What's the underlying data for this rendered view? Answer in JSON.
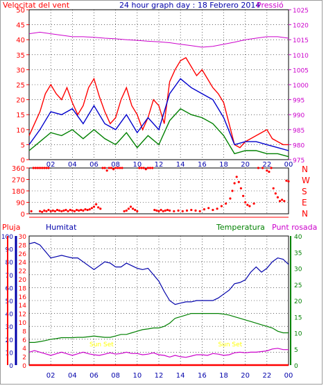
{
  "chart_data": [
    {
      "type": "line",
      "title": "24 hour graph day : 18 Febrero 2014",
      "left_axis_label": "Velocitat del vent",
      "right_axis_label": "Pressió",
      "xticks": [
        "02",
        "04",
        "06",
        "08",
        "10",
        "12",
        "14",
        "16",
        "18",
        "20",
        "22",
        "00"
      ],
      "yleft_ticks": [
        0,
        5,
        10,
        15,
        20,
        25,
        30,
        35,
        40,
        45,
        50
      ],
      "yright_ticks": [
        975,
        980,
        985,
        990,
        995,
        1000,
        1005,
        1010,
        1015,
        1020,
        1025
      ],
      "ylim_left": [
        0,
        50
      ],
      "ylim_right": [
        975,
        1025
      ],
      "colors": {
        "gust": "#ff0000",
        "average": "#0000cc",
        "wind": "#008000",
        "pressure": "#cc00cc"
      },
      "series": [
        {
          "key": "gust",
          "x": [
            0,
            0.5,
            1,
            1.5,
            2,
            2.5,
            3,
            3.5,
            4,
            4.5,
            5,
            5.5,
            6,
            6.5,
            7,
            7.5,
            8,
            8.5,
            9,
            9.5,
            10,
            10.5,
            11,
            11.5,
            12,
            12.5,
            13,
            13.5,
            14,
            14.5,
            15,
            15.5,
            16,
            16.5,
            17,
            17.5,
            18,
            18.5,
            19,
            19.5,
            20,
            20.5,
            21,
            21.5,
            22,
            22.5,
            23,
            23.5,
            24
          ],
          "y": [
            8,
            12,
            16,
            22,
            25,
            22,
            20,
            24,
            19,
            15,
            18,
            24,
            27,
            21,
            16,
            12,
            14,
            20,
            24,
            18,
            15,
            10,
            14,
            20,
            18,
            12,
            26,
            30,
            33,
            34,
            31,
            28,
            30,
            27,
            24,
            22,
            19,
            12,
            5,
            4,
            6,
            7,
            8,
            9,
            10,
            7,
            6,
            5,
            5
          ]
        },
        {
          "key": "average",
          "x": [
            0,
            1,
            2,
            3,
            4,
            5,
            6,
            7,
            8,
            9,
            10,
            11,
            12,
            13,
            14,
            15,
            16,
            17,
            18,
            19,
            20,
            21,
            22,
            23,
            24
          ],
          "y": [
            5,
            10,
            16,
            15,
            17,
            12,
            18,
            12,
            10,
            15,
            9,
            14,
            10,
            22,
            27,
            24,
            22,
            20,
            14,
            5,
            6,
            6,
            5,
            4,
            3
          ]
        },
        {
          "key": "wind",
          "x": [
            0,
            1,
            2,
            3,
            4,
            5,
            6,
            7,
            8,
            9,
            10,
            11,
            12,
            13,
            14,
            15,
            16,
            17,
            18,
            19,
            20,
            21,
            22,
            23,
            24
          ],
          "y": [
            3,
            6,
            9,
            8,
            10,
            7,
            10,
            7,
            5,
            9,
            4,
            8,
            5,
            13,
            17,
            15,
            14,
            12,
            8,
            2,
            3,
            3,
            2,
            2,
            1
          ]
        },
        {
          "key": "pressure",
          "x": [
            0,
            1,
            2,
            3,
            4,
            5,
            6,
            7,
            8,
            9,
            10,
            11,
            12,
            13,
            14,
            15,
            16,
            17,
            18,
            19,
            20,
            21,
            22,
            23,
            24
          ],
          "y": [
            1017,
            1017.5,
            1017,
            1016.5,
            1016,
            1016,
            1015.8,
            1015.5,
            1015.3,
            1015,
            1014.8,
            1014.5,
            1014.3,
            1014,
            1013.5,
            1013,
            1012.5,
            1012.8,
            1013.5,
            1014.2,
            1015,
            1015.5,
            1016,
            1016,
            1015.5
          ]
        }
      ]
    },
    {
      "type": "scatter",
      "right_labels": [
        "N",
        "W",
        "S",
        "E",
        "N"
      ],
      "yticks": [
        0,
        90,
        180,
        270,
        360
      ],
      "ylim": [
        0,
        360
      ],
      "xticks": [
        "02",
        "04",
        "06",
        "08",
        "10",
        "12",
        "14",
        "16",
        "18",
        "20",
        "22",
        "00"
      ],
      "color": "#ff0000",
      "series": [
        {
          "key": "direction",
          "points": [
            [
              0.2,
              20
            ],
            [
              0.4,
              360
            ],
            [
              0.6,
              360
            ],
            [
              0.8,
              360
            ],
            [
              1.0,
              360
            ],
            [
              1.2,
              360
            ],
            [
              1.4,
              360
            ],
            [
              1.6,
              360
            ],
            [
              1.8,
              360
            ],
            [
              1.0,
              20
            ],
            [
              1.2,
              15
            ],
            [
              1.4,
              25
            ],
            [
              1.6,
              20
            ],
            [
              1.8,
              30
            ],
            [
              2.0,
              20
            ],
            [
              2.2,
              25
            ],
            [
              2.4,
              20
            ],
            [
              2.6,
              30
            ],
            [
              2.8,
              25
            ],
            [
              3.0,
              20
            ],
            [
              3.2,
              25
            ],
            [
              3.4,
              30
            ],
            [
              3.6,
              20
            ],
            [
              3.8,
              30
            ],
            [
              4.0,
              25
            ],
            [
              4.2,
              20
            ],
            [
              4.4,
              30
            ],
            [
              4.6,
              25
            ],
            [
              4.8,
              30
            ],
            [
              5.0,
              25
            ],
            [
              5.2,
              35
            ],
            [
              5.4,
              30
            ],
            [
              5.6,
              35
            ],
            [
              5.8,
              45
            ],
            [
              6.0,
              55
            ],
            [
              6.2,
              75
            ],
            [
              6.4,
              50
            ],
            [
              6.6,
              40
            ],
            [
              6.8,
              360
            ],
            [
              7.0,
              360
            ],
            [
              7.2,
              340
            ],
            [
              7.4,
              360
            ],
            [
              7.6,
              360
            ],
            [
              7.8,
              350
            ],
            [
              8.0,
              360
            ],
            [
              8.2,
              360
            ],
            [
              8.4,
              360
            ],
            [
              8.6,
              360
            ],
            [
              8.8,
              20
            ],
            [
              9.0,
              25
            ],
            [
              9.2,
              40
            ],
            [
              9.4,
              55
            ],
            [
              9.6,
              40
            ],
            [
              9.8,
              30
            ],
            [
              10.0,
              20
            ],
            [
              10.2,
              360
            ],
            [
              10.4,
              360
            ],
            [
              10.6,
              360
            ],
            [
              10.8,
              350
            ],
            [
              11.0,
              360
            ],
            [
              11.2,
              360
            ],
            [
              11.4,
              360
            ],
            [
              11.6,
              30
            ],
            [
              11.8,
              25
            ],
            [
              12.0,
              20
            ],
            [
              12.2,
              30
            ],
            [
              12.4,
              20
            ],
            [
              12.6,
              25
            ],
            [
              12.8,
              30
            ],
            [
              13.0,
              25
            ],
            [
              13.4,
              20
            ],
            [
              13.8,
              25
            ],
            [
              14.2,
              20
            ],
            [
              14.6,
              25
            ],
            [
              15.0,
              30
            ],
            [
              15.4,
              25
            ],
            [
              15.8,
              20
            ],
            [
              16.2,
              35
            ],
            [
              16.6,
              45
            ],
            [
              17.0,
              30
            ],
            [
              17.4,
              40
            ],
            [
              17.8,
              60
            ],
            [
              18.2,
              80
            ],
            [
              18.6,
              120
            ],
            [
              18.8,
              180
            ],
            [
              19.0,
              240
            ],
            [
              19.2,
              290
            ],
            [
              19.4,
              250
            ],
            [
              19.6,
              200
            ],
            [
              19.8,
              140
            ],
            [
              20.0,
              90
            ],
            [
              20.2,
              70
            ],
            [
              20.4,
              60
            ],
            [
              20.8,
              80
            ],
            [
              21.2,
              360
            ],
            [
              21.6,
              360
            ],
            [
              22.0,
              340
            ],
            [
              22.2,
              330
            ],
            [
              22.4,
              360
            ],
            [
              22.6,
              200
            ],
            [
              22.8,
              160
            ],
            [
              23.0,
              130
            ],
            [
              23.2,
              100
            ],
            [
              23.4,
              110
            ],
            [
              23.6,
              100
            ],
            [
              23.8,
              260
            ],
            [
              24.0,
              255
            ]
          ]
        }
      ]
    },
    {
      "type": "line",
      "left_labels": {
        "rain": "Pluja",
        "humidity": "Humitat"
      },
      "right_labels": {
        "temperature": "Temperatura",
        "dewpoint": "Punt rosada"
      },
      "yrain_ticks": [
        0,
        2,
        4,
        6,
        8,
        10,
        12,
        14,
        16,
        18,
        20,
        22,
        24,
        26,
        28,
        30
      ],
      "yhum_ticks": [
        0,
        10,
        20,
        30,
        40,
        50,
        60,
        70,
        80,
        90,
        100
      ],
      "ytemp_ticks": [
        0,
        5,
        10,
        15,
        20,
        25,
        30,
        35,
        40
      ],
      "ylim_humidity": [
        0,
        100
      ],
      "ylim_temperature": [
        0,
        40
      ],
      "xticks": [
        "02",
        "04",
        "06",
        "08",
        "10",
        "12",
        "14",
        "16",
        "18",
        "20",
        "22",
        "00"
      ],
      "annotations": [
        {
          "label": "Sun Set",
          "x": 6.7
        },
        {
          "label": "Sun Set",
          "x": 18.6
        }
      ],
      "colors": {
        "humidity": "#0000aa",
        "temperature": "#008000",
        "dewpoint": "#cc00cc",
        "rain": "#ff0000"
      },
      "series": [
        {
          "key": "humidity",
          "x": [
            0,
            0.5,
            1,
            1.5,
            2,
            2.5,
            3,
            3.5,
            4,
            4.5,
            5,
            5.5,
            6,
            6.5,
            7,
            7.5,
            8,
            8.5,
            9,
            9.5,
            10,
            10.5,
            11,
            11.5,
            12,
            12.5,
            13,
            13.5,
            14,
            14.5,
            15,
            15.5,
            16,
            16.5,
            17,
            17.5,
            18,
            18.5,
            19,
            19.5,
            20,
            20.5,
            21,
            21.5,
            22,
            22.5,
            23,
            23.5,
            24
          ],
          "y": [
            94,
            95,
            93,
            88,
            83,
            84,
            85,
            84,
            83,
            83,
            80,
            77,
            74,
            77,
            80,
            79,
            76,
            76,
            79,
            77,
            75,
            74,
            75,
            70,
            65,
            57,
            50,
            47,
            48,
            49,
            49,
            50,
            50,
            50,
            50,
            52,
            55,
            58,
            63,
            64,
            66,
            72,
            76,
            72,
            75,
            80,
            83,
            82,
            78
          ]
        },
        {
          "key": "temperature",
          "x": [
            0,
            0.5,
            1,
            1.5,
            2,
            2.5,
            3,
            3.5,
            4,
            4.5,
            5,
            5.5,
            6,
            6.5,
            7,
            7.5,
            8,
            8.5,
            9,
            9.5,
            10,
            10.5,
            11,
            11.5,
            12,
            12.5,
            13,
            13.5,
            14,
            14.5,
            15,
            15.5,
            16,
            16.5,
            17,
            17.5,
            18,
            18.5,
            19,
            19.5,
            20,
            20.5,
            21,
            21.5,
            22,
            22.5,
            23,
            23.5,
            24
          ],
          "y": [
            7,
            7,
            7.3,
            7.6,
            8,
            8.2,
            8.5,
            8.5,
            8.5,
            8.6,
            8.6,
            8.8,
            9,
            8.8,
            8.6,
            8.6,
            9,
            9.5,
            9.5,
            10,
            10.5,
            11,
            11.2,
            11.5,
            11.5,
            12,
            13,
            14.5,
            15,
            15.5,
            16,
            16,
            16,
            16,
            16,
            16,
            15.8,
            15.5,
            15,
            14.5,
            14,
            13.5,
            13,
            12.5,
            12,
            11.5,
            10.5,
            10,
            10
          ]
        },
        {
          "key": "dewpoint",
          "x": [
            0,
            0.5,
            1,
            1.5,
            2,
            2.5,
            3,
            3.5,
            4,
            4.5,
            5,
            5.5,
            6,
            6.5,
            7,
            7.5,
            8,
            8.5,
            9,
            9.5,
            10,
            10.5,
            11,
            11.5,
            12,
            12.5,
            13,
            13.5,
            14,
            14.5,
            15,
            15.5,
            16,
            16.5,
            17,
            17.5,
            18,
            18.5,
            19,
            19.5,
            20,
            20.5,
            21,
            21.5,
            22,
            22.5,
            23,
            23.5,
            24
          ],
          "y": [
            4,
            4.5,
            4,
            3.5,
            3,
            3.5,
            4,
            3.5,
            3,
            3.5,
            4,
            3.5,
            3.2,
            3,
            3.4,
            3.8,
            3.4,
            3.6,
            4,
            3.6,
            3.6,
            3.2,
            3.4,
            3.8,
            3.2,
            3,
            2.5,
            3,
            2.6,
            2.4,
            2.8,
            3.2,
            3.2,
            3,
            3.6,
            3.4,
            3,
            3.2,
            3.8,
            4,
            3.8,
            4,
            4,
            4.2,
            4.4,
            5,
            5.2,
            4.8,
            4.8
          ]
        },
        {
          "key": "rain",
          "x": [
            0,
            24
          ],
          "y": [
            0,
            0
          ]
        }
      ]
    }
  ]
}
